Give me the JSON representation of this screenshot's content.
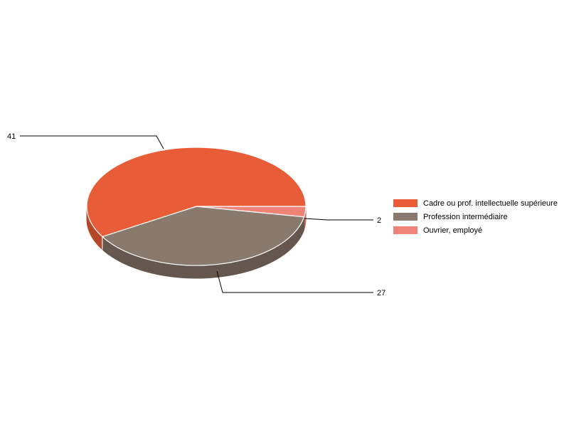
{
  "chart_data": {
    "type": "pie",
    "style": "3d",
    "categories": [
      "Cadre ou prof. intellectuelle supérieure",
      "Profession intermédiaire",
      "Ouvrier, employé"
    ],
    "values": [
      41,
      27,
      2
    ],
    "value_labels": [
      "41",
      "27",
      "2"
    ],
    "colors": [
      "#E85D37",
      "#8A7A6D",
      "#EE8377"
    ],
    "side_colors": [
      "#B34727",
      "#65574D",
      "#C56A60"
    ],
    "legend_position": "right",
    "title": ""
  }
}
